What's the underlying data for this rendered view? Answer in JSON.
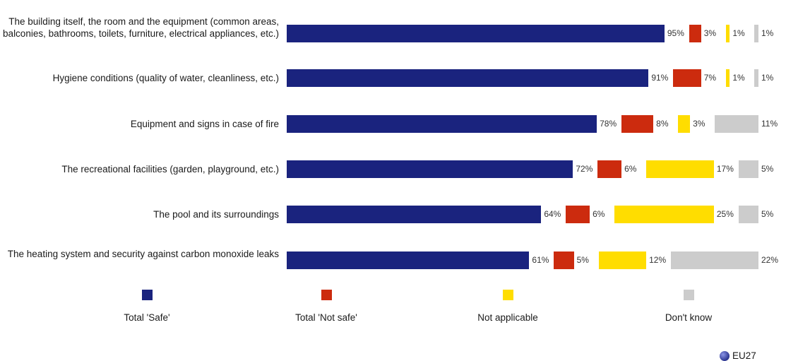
{
  "chart_data": {
    "type": "bar",
    "orientation": "horizontal",
    "stacked": true,
    "categories": [
      "The building itself, the room and the equipment (common areas, balconies, bathrooms, toilets, furniture, electrical appliances, etc.)",
      "Hygiene conditions (quality of water, cleanliness, etc.)",
      "Equipment and signs in case of fire",
      "The recreational facilities (garden, playground, etc.)",
      "The pool and its surroundings",
      "The heating system and security against carbon monoxide leaks"
    ],
    "series": [
      {
        "name": "Total 'Safe'",
        "color": "#1a237e",
        "values": [
          95,
          91,
          78,
          72,
          64,
          61
        ]
      },
      {
        "name": "Total 'Not safe'",
        "color": "#cc2b0e",
        "values": [
          3,
          7,
          8,
          6,
          6,
          5
        ]
      },
      {
        "name": "Not applicable",
        "color": "#ffdd00",
        "values": [
          1,
          1,
          3,
          17,
          25,
          12
        ]
      },
      {
        "name": "Don't know",
        "color": "#cccccc",
        "values": [
          1,
          1,
          11,
          5,
          5,
          22
        ]
      }
    ],
    "value_suffix": "%",
    "legend_position": "bottom",
    "grid": false
  },
  "footer": {
    "region_label": "EU27"
  }
}
